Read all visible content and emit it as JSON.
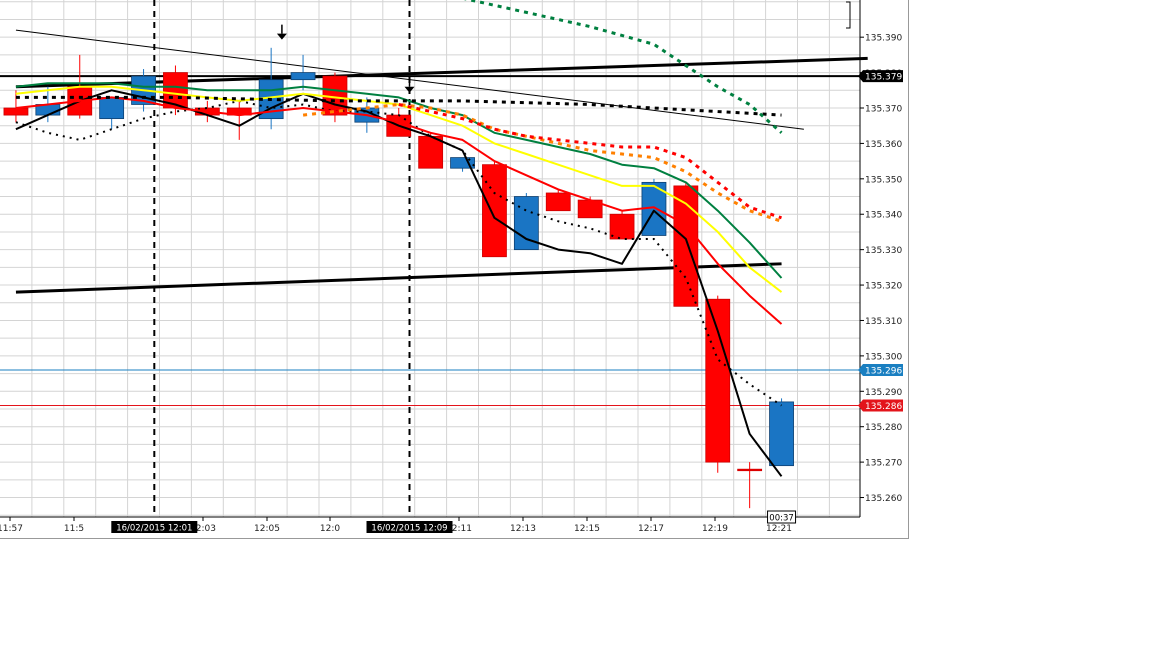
{
  "chart_data": {
    "type": "candlestick",
    "instrument_price_axis": {
      "ticks": [
        "135.390",
        "135.380",
        "135.370",
        "135.360",
        "135.350",
        "135.340",
        "135.330",
        "135.320",
        "135.310",
        "135.300",
        "135.290",
        "135.280",
        "135.270",
        "135.260"
      ],
      "range": [
        135.2545,
        135.4005
      ]
    },
    "time_axis": {
      "ticks": [
        "11:57",
        "11:5",
        "12:03",
        "12:05",
        "12:0",
        "12:11",
        "12:13",
        "12:15",
        "12:17",
        "12:19",
        "12:21"
      ],
      "session_labels": [
        "16/02/2015 12:01",
        "16/02/2015 12:09"
      ]
    },
    "candles": [
      {
        "t": 0,
        "o": 135.37,
        "h": 135.375,
        "l": 135.366,
        "c": 135.368,
        "color": "red"
      },
      {
        "t": 1,
        "o": 135.368,
        "h": 135.376,
        "l": 135.366,
        "c": 135.371,
        "color": "blue"
      },
      {
        "t": 2,
        "o": 135.376,
        "h": 135.385,
        "l": 135.367,
        "c": 135.368,
        "color": "red"
      },
      {
        "t": 3,
        "o": 135.367,
        "h": 135.373,
        "l": 135.364,
        "c": 135.373,
        "color": "blue"
      },
      {
        "t": 4,
        "o": 135.371,
        "h": 135.381,
        "l": 135.369,
        "c": 135.379,
        "color": "blue"
      },
      {
        "t": 5,
        "o": 135.38,
        "h": 135.382,
        "l": 135.368,
        "c": 135.37,
        "color": "red"
      },
      {
        "t": 6,
        "o": 135.37,
        "h": 135.372,
        "l": 135.366,
        "c": 135.368,
        "color": "red"
      },
      {
        "t": 7,
        "o": 135.37,
        "h": 135.372,
        "l": 135.361,
        "c": 135.368,
        "color": "red"
      },
      {
        "t": 8,
        "o": 135.367,
        "h": 135.387,
        "l": 135.364,
        "c": 135.378,
        "color": "blue"
      },
      {
        "t": 9,
        "o": 135.378,
        "h": 135.385,
        "l": 135.375,
        "c": 135.38,
        "color": "blue"
      },
      {
        "t": 10,
        "o": 135.379,
        "h": 135.38,
        "l": 135.366,
        "c": 135.368,
        "color": "red"
      },
      {
        "t": 11,
        "o": 135.366,
        "h": 135.373,
        "l": 135.363,
        "c": 135.37,
        "color": "blue"
      },
      {
        "t": 12,
        "o": 135.368,
        "h": 135.37,
        "l": 135.362,
        "c": 135.362,
        "color": "red"
      },
      {
        "t": 13,
        "o": 135.362,
        "h": 135.363,
        "l": 135.353,
        "c": 135.353,
        "color": "red"
      },
      {
        "t": 14,
        "o": 135.353,
        "h": 135.356,
        "l": 135.352,
        "c": 135.356,
        "color": "blue"
      },
      {
        "t": 15,
        "o": 135.354,
        "h": 135.355,
        "l": 135.328,
        "c": 135.328,
        "color": "red"
      },
      {
        "t": 16,
        "o": 135.33,
        "h": 135.346,
        "l": 135.33,
        "c": 135.345,
        "color": "blue"
      },
      {
        "t": 17,
        "o": 135.346,
        "h": 135.347,
        "l": 135.341,
        "c": 135.341,
        "color": "red"
      },
      {
        "t": 18,
        "o": 135.344,
        "h": 135.345,
        "l": 135.339,
        "c": 135.339,
        "color": "red"
      },
      {
        "t": 19,
        "o": 135.34,
        "h": 135.341,
        "l": 135.333,
        "c": 135.333,
        "color": "red"
      },
      {
        "t": 20,
        "o": 135.334,
        "h": 135.35,
        "l": 135.334,
        "c": 135.349,
        "color": "blue"
      },
      {
        "t": 21,
        "o": 135.348,
        "h": 135.349,
        "l": 135.314,
        "c": 135.314,
        "color": "red"
      },
      {
        "t": 22,
        "o": 135.316,
        "h": 135.317,
        "l": 135.267,
        "c": 135.27,
        "color": "red"
      },
      {
        "t": 23,
        "o": 135.268,
        "h": 135.27,
        "l": 135.257,
        "c": 135.268,
        "color": "red"
      },
      {
        "t": 24,
        "o": 135.269,
        "h": 135.288,
        "l": 135.269,
        "c": 135.287,
        "color": "blue"
      }
    ],
    "lines": [
      {
        "name": "",
        "color": "#000000",
        "style": "solid",
        "width": 2,
        "points": [
          [
            0,
            135.364
          ],
          [
            1,
            135.368
          ],
          [
            2,
            135.372
          ],
          [
            3,
            135.375
          ],
          [
            4,
            135.373
          ],
          [
            5,
            135.371
          ],
          [
            6,
            135.368
          ],
          [
            7,
            135.365
          ],
          [
            8,
            135.37
          ],
          [
            9,
            135.374
          ],
          [
            10,
            135.371
          ],
          [
            11,
            135.369
          ],
          [
            12,
            135.365
          ],
          [
            13,
            135.362
          ],
          [
            14,
            135.358
          ],
          [
            15,
            135.339
          ],
          [
            16,
            135.333
          ],
          [
            17,
            135.33
          ],
          [
            18,
            135.329
          ],
          [
            19,
            135.326
          ],
          [
            20,
            135.341
          ],
          [
            21,
            135.333
          ],
          [
            22,
            135.307
          ],
          [
            23,
            135.278
          ],
          [
            24,
            135.266
          ]
        ]
      },
      {
        "name": "",
        "color": "#000000",
        "style": "dotted",
        "width": 2,
        "points": [
          [
            0,
            135.366
          ],
          [
            1,
            135.363
          ],
          [
            2,
            135.361
          ],
          [
            3,
            135.364
          ],
          [
            4,
            135.367
          ],
          [
            5,
            135.369
          ],
          [
            6,
            135.37
          ],
          [
            7,
            135.372
          ],
          [
            8,
            135.37
          ],
          [
            9,
            135.371
          ],
          [
            10,
            135.369
          ],
          [
            11,
            135.369
          ],
          [
            12,
            135.368
          ],
          [
            13,
            135.362
          ],
          [
            14,
            135.358
          ],
          [
            15,
            135.346
          ],
          [
            16,
            135.341
          ],
          [
            17,
            135.338
          ],
          [
            18,
            135.336
          ],
          [
            19,
            135.333
          ],
          [
            20,
            135.333
          ],
          [
            21,
            135.322
          ],
          [
            22,
            135.299
          ],
          [
            23,
            135.292
          ],
          [
            24,
            135.286
          ]
        ]
      },
      {
        "name": "",
        "color": "#ff0000",
        "style": "solid",
        "width": 2,
        "points": [
          [
            0,
            135.37
          ],
          [
            1,
            135.371
          ],
          [
            2,
            135.372
          ],
          [
            3,
            135.373
          ],
          [
            4,
            135.372
          ],
          [
            5,
            135.37
          ],
          [
            6,
            135.369
          ],
          [
            7,
            135.368
          ],
          [
            8,
            135.369
          ],
          [
            9,
            135.37
          ],
          [
            10,
            135.369
          ],
          [
            11,
            135.368
          ],
          [
            12,
            135.366
          ],
          [
            13,
            135.363
          ],
          [
            14,
            135.361
          ],
          [
            15,
            135.355
          ],
          [
            16,
            135.351
          ],
          [
            17,
            135.347
          ],
          [
            18,
            135.344
          ],
          [
            19,
            135.341
          ],
          [
            20,
            135.342
          ],
          [
            21,
            135.337
          ],
          [
            22,
            135.326
          ],
          [
            23,
            135.317
          ],
          [
            24,
            135.309
          ]
        ]
      },
      {
        "name": "",
        "color": "#ffff00",
        "style": "solid",
        "width": 2,
        "points": [
          [
            0,
            135.374
          ],
          [
            1,
            135.375
          ],
          [
            2,
            135.376
          ],
          [
            3,
            135.376
          ],
          [
            4,
            135.375
          ],
          [
            5,
            135.374
          ],
          [
            6,
            135.373
          ],
          [
            7,
            135.372
          ],
          [
            8,
            135.373
          ],
          [
            9,
            135.374
          ],
          [
            10,
            135.373
          ],
          [
            11,
            135.372
          ],
          [
            12,
            135.371
          ],
          [
            13,
            135.368
          ],
          [
            14,
            135.365
          ],
          [
            15,
            135.36
          ],
          [
            16,
            135.357
          ],
          [
            17,
            135.354
          ],
          [
            18,
            135.351
          ],
          [
            19,
            135.348
          ],
          [
            20,
            135.348
          ],
          [
            21,
            135.343
          ],
          [
            22,
            135.335
          ],
          [
            23,
            135.325
          ],
          [
            24,
            135.318
          ]
        ]
      },
      {
        "name": "",
        "color": "#008040",
        "style": "solid",
        "width": 2,
        "points": [
          [
            0,
            135.376
          ],
          [
            1,
            135.377
          ],
          [
            2,
            135.377
          ],
          [
            3,
            135.377
          ],
          [
            4,
            135.376
          ],
          [
            5,
            135.376
          ],
          [
            6,
            135.375
          ],
          [
            7,
            135.375
          ],
          [
            8,
            135.375
          ],
          [
            9,
            135.376
          ],
          [
            10,
            135.375
          ],
          [
            11,
            135.374
          ],
          [
            12,
            135.373
          ],
          [
            13,
            135.37
          ],
          [
            14,
            135.368
          ],
          [
            15,
            135.363
          ],
          [
            16,
            135.361
          ],
          [
            17,
            135.359
          ],
          [
            18,
            135.357
          ],
          [
            19,
            135.354
          ],
          [
            20,
            135.353
          ],
          [
            21,
            135.349
          ],
          [
            22,
            135.341
          ],
          [
            23,
            135.332
          ],
          [
            24,
            135.322
          ]
        ]
      },
      {
        "name": "",
        "color": "#ff8000",
        "style": "dotted",
        "width": 3,
        "points": [
          [
            9,
            135.368
          ],
          [
            10,
            135.369
          ],
          [
            11,
            135.37
          ],
          [
            12,
            135.371
          ],
          [
            13,
            135.37
          ],
          [
            14,
            135.368
          ],
          [
            15,
            135.364
          ],
          [
            16,
            135.362
          ],
          [
            17,
            135.36
          ],
          [
            18,
            135.358
          ],
          [
            19,
            135.357
          ],
          [
            20,
            135.356
          ],
          [
            21,
            135.352
          ],
          [
            22,
            135.346
          ],
          [
            23,
            135.341
          ],
          [
            24,
            135.338
          ]
        ]
      },
      {
        "name": "",
        "color": "#ff0000",
        "style": "dotted",
        "width": 3,
        "points": [
          [
            12,
            135.371
          ],
          [
            13,
            135.369
          ],
          [
            14,
            135.367
          ],
          [
            15,
            135.364
          ],
          [
            16,
            135.362
          ],
          [
            17,
            135.361
          ],
          [
            18,
            135.36
          ],
          [
            19,
            135.359
          ],
          [
            20,
            135.359
          ],
          [
            21,
            135.356
          ],
          [
            22,
            135.349
          ],
          [
            23,
            135.342
          ],
          [
            24,
            135.339
          ]
        ]
      },
      {
        "name": "",
        "color": "#000000",
        "style": "dotted",
        "width": 3,
        "points": [
          [
            0,
            135.373
          ],
          [
            5,
            135.373
          ],
          [
            10,
            135.372
          ],
          [
            14,
            135.372
          ],
          [
            18,
            135.371
          ],
          [
            24,
            135.368
          ]
        ]
      },
      {
        "name": "",
        "color": "#008040",
        "style": "dotted",
        "width": 3,
        "points": [
          [
            14,
            135.401
          ],
          [
            16,
            135.397
          ],
          [
            18,
            135.393
          ],
          [
            20,
            135.388
          ],
          [
            22,
            135.376
          ],
          [
            23,
            135.371
          ],
          [
            24,
            135.363
          ]
        ]
      }
    ],
    "trendlines": [
      {
        "name": "",
        "points": [
          [
            0,
            135.392
          ],
          [
            24.7,
            135.364
          ]
        ],
        "width": 1
      },
      {
        "name": "",
        "points": [
          [
            0,
            135.376
          ],
          [
            26.7,
            135.384
          ]
        ],
        "width": 3
      },
      {
        "name": "",
        "points": [
          [
            0,
            135.318
          ],
          [
            24,
            135.326
          ]
        ],
        "width": 3
      }
    ],
    "horizontal_levels": [
      {
        "value": 135.379,
        "label": "135.379",
        "color": "#000000",
        "width": 2
      },
      {
        "value": 135.296,
        "label": "135.296",
        "color": "#1a7fc1",
        "width": 1
      },
      {
        "value": 135.286,
        "label": "135.286",
        "color": "#e3141b",
        "width": 1
      }
    ],
    "vertical_markers": [
      {
        "t": 3.9
      },
      {
        "t": 11.9
      }
    ],
    "down_arrows": [
      {
        "t": 7.9,
        "price": 135.391
      },
      {
        "t": 11.9,
        "price": 135.376
      }
    ],
    "countdown": "00:37",
    "grid": true,
    "legend": "none"
  }
}
